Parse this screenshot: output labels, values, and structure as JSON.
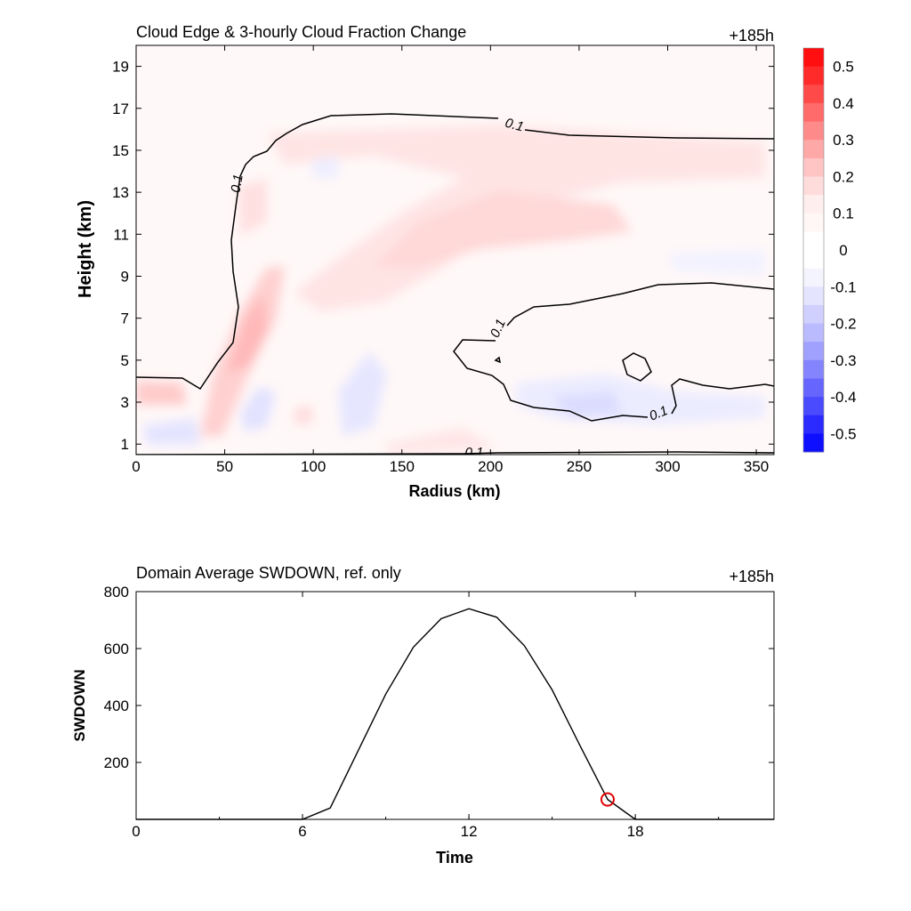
{
  "chart_data": [
    {
      "type": "heatmap",
      "title": "Cloud Edge & 3-hourly Cloud Fraction Change",
      "time_label": "+185h",
      "xlabel": "Radius (km)",
      "ylabel": "Height (km)",
      "xlim": [
        0,
        360
      ],
      "ylim": [
        0.5,
        20
      ],
      "x_ticks": [
        "0",
        "50",
        "100",
        "150",
        "200",
        "250",
        "300",
        "350"
      ],
      "y_ticks": [
        "1",
        "3",
        "5",
        "7",
        "9",
        "11",
        "13",
        "15",
        "17",
        "19"
      ],
      "contour_levels": [
        "0.1"
      ],
      "colorbar": {
        "range": [
          -0.55,
          0.55
        ],
        "labels": [
          "0.5",
          "0.4",
          "0.3",
          "0.2",
          "0.1",
          "0",
          "-0.1",
          "-0.2",
          "-0.3",
          "-0.4",
          "-0.5"
        ],
        "colors_top_to_bottom": [
          "#ff0f0f",
          "#ff2b2b",
          "#ff4a4a",
          "#ff6a6a",
          "#ff8a8a",
          "#ffa8a8",
          "#ffc4c4",
          "#ffdcdc",
          "#ffeeee",
          "#fff6f6",
          "#ffffff",
          "#ffffff",
          "#f4f4ff",
          "#e4e4ff",
          "#d0d0ff",
          "#babaff",
          "#a0a0ff",
          "#8484ff",
          "#6666ff",
          "#4a4aff",
          "#2b2bff",
          "#0f0fff"
        ]
      }
    },
    {
      "type": "line",
      "title": "Domain Average SWDOWN, ref. only",
      "time_label": "+185h",
      "xlabel": "Time",
      "ylabel": "SWDOWN",
      "xlim": [
        0,
        23
      ],
      "ylim": [
        0,
        800
      ],
      "x_ticks": [
        "0",
        "6",
        "12",
        "18"
      ],
      "y_ticks": [
        "200",
        "400",
        "600",
        "800"
      ],
      "x": [
        0,
        1,
        2,
        3,
        4,
        5,
        6,
        7,
        8,
        9,
        10,
        11,
        12,
        13,
        14,
        15,
        16,
        17,
        18,
        19,
        20,
        21,
        22,
        23
      ],
      "y": [
        0,
        0,
        0,
        0,
        0,
        0,
        0,
        40,
        240,
        440,
        605,
        705,
        740,
        710,
        610,
        455,
        260,
        70,
        0,
        0,
        0,
        0,
        0,
        0
      ],
      "marker": {
        "x": 17,
        "y": 70,
        "color": "#e00000"
      }
    }
  ]
}
